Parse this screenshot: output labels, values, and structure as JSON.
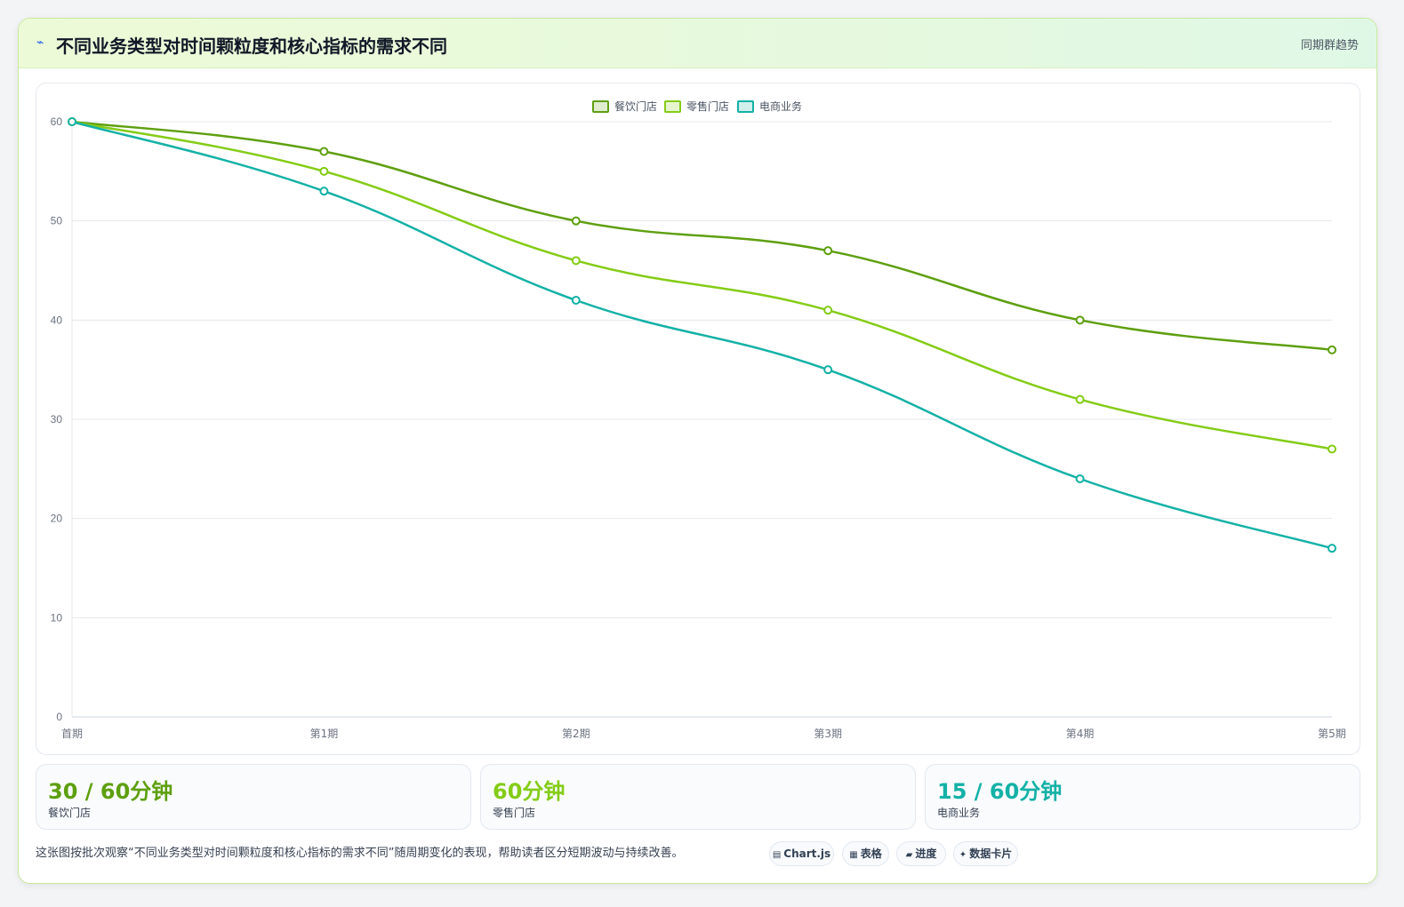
{
  "header": {
    "icon": "chart-trend-icon",
    "title": "不同业务类型对时间颗粒度和核心指标的需求不同",
    "link": "同期群趋势"
  },
  "chart_data": {
    "type": "line",
    "title": "",
    "xlabel": "",
    "ylabel": "",
    "categories": [
      "首期",
      "第1期",
      "第2期",
      "第3期",
      "第4期",
      "第5期"
    ],
    "ylim": [
      0,
      60
    ],
    "yticks": [
      0,
      10,
      20,
      30,
      40,
      50,
      60
    ],
    "grid": true,
    "legend_position": "top-center",
    "series": [
      {
        "name": "餐饮门店",
        "color": "#5e9f0f",
        "values": [
          60,
          57,
          50,
          47,
          40,
          37
        ]
      },
      {
        "name": "零售门店",
        "color": "#84cc16",
        "values": [
          60,
          55,
          46,
          41,
          32,
          27
        ]
      },
      {
        "name": "电商业务",
        "color": "#14b1a6",
        "values": [
          60,
          53,
          42,
          35,
          24,
          17
        ]
      }
    ]
  },
  "stats": [
    {
      "value": "30 / 60分钟",
      "label": "餐饮门店",
      "color": "#5e9f0f"
    },
    {
      "value": "60分钟",
      "label": "零售门店",
      "color": "#84cc16"
    },
    {
      "value": "15 / 60分钟",
      "label": "电商业务",
      "color": "#14b1a6"
    }
  ],
  "footnote": "这张图按批次观察“不同业务类型对时间颗粒度和核心指标的需求不同”随周期变化的表现，帮助读者区分短期波动与持续改善。",
  "pills": [
    {
      "icon": "▤",
      "label": "Chart.js",
      "icon_name": "chart-icon"
    },
    {
      "icon": "▦",
      "label": "表格",
      "icon_name": "table-icon"
    },
    {
      "icon": "▰",
      "label": "进度",
      "icon_name": "progress-icon"
    },
    {
      "icon": "✦",
      "label": "数据卡片",
      "icon_name": "card-icon"
    }
  ]
}
